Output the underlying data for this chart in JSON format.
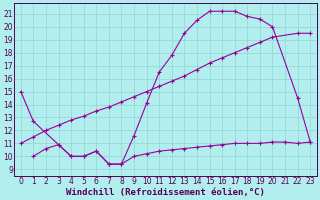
{
  "xlabel": "Windchill (Refroidissement éolien,°C)",
  "xlim": [
    -0.5,
    23.5
  ],
  "ylim": [
    8.5,
    21.8
  ],
  "xticks": [
    0,
    1,
    2,
    3,
    4,
    5,
    6,
    7,
    8,
    9,
    10,
    11,
    12,
    13,
    14,
    15,
    16,
    17,
    18,
    19,
    20,
    21,
    22,
    23
  ],
  "yticks": [
    9,
    10,
    11,
    12,
    13,
    14,
    15,
    16,
    17,
    18,
    19,
    20,
    21
  ],
  "bg_color": "#b2eeee",
  "grid_color": "#98d8d8",
  "line_color": "#990099",
  "font_color": "#550055",
  "curve1_x": [
    0,
    1,
    3,
    4,
    5,
    6,
    7,
    8,
    9,
    10,
    11,
    12,
    13,
    14,
    15,
    16,
    17,
    18,
    19,
    20,
    22,
    23
  ],
  "curve1_y": [
    15,
    12.7,
    10.9,
    10.0,
    10.0,
    10.4,
    9.4,
    9.4,
    11.6,
    14.1,
    16.5,
    17.8,
    19.5,
    20.5,
    21.2,
    21.2,
    21.2,
    20.8,
    20.6,
    20.0,
    14.5,
    11.1
  ],
  "curve2_x": [
    0,
    1,
    2,
    3,
    4,
    5,
    6,
    7,
    8,
    9,
    10,
    11,
    12,
    13,
    14,
    15,
    16,
    17,
    18,
    19,
    20,
    22,
    23
  ],
  "curve2_y": [
    11.0,
    11.5,
    12.0,
    12.4,
    12.8,
    13.1,
    13.5,
    13.8,
    14.2,
    14.6,
    15.0,
    15.4,
    15.8,
    16.2,
    16.7,
    17.2,
    17.6,
    18.0,
    18.4,
    18.8,
    19.2,
    19.5,
    19.5
  ],
  "curve3_x": [
    1,
    2,
    3,
    4,
    5,
    6,
    7,
    8,
    9,
    10,
    11,
    12,
    13,
    14,
    15,
    16,
    17,
    18,
    19,
    20,
    21,
    22,
    23
  ],
  "curve3_y": [
    10.0,
    10.6,
    10.9,
    10.0,
    10.0,
    10.4,
    9.4,
    9.4,
    10.0,
    10.2,
    10.4,
    10.5,
    10.6,
    10.7,
    10.8,
    10.9,
    11.0,
    11.0,
    11.0,
    11.1,
    11.1,
    11.0,
    11.1
  ],
  "tick_fontsize": 5.5,
  "label_fontsize": 6.5
}
